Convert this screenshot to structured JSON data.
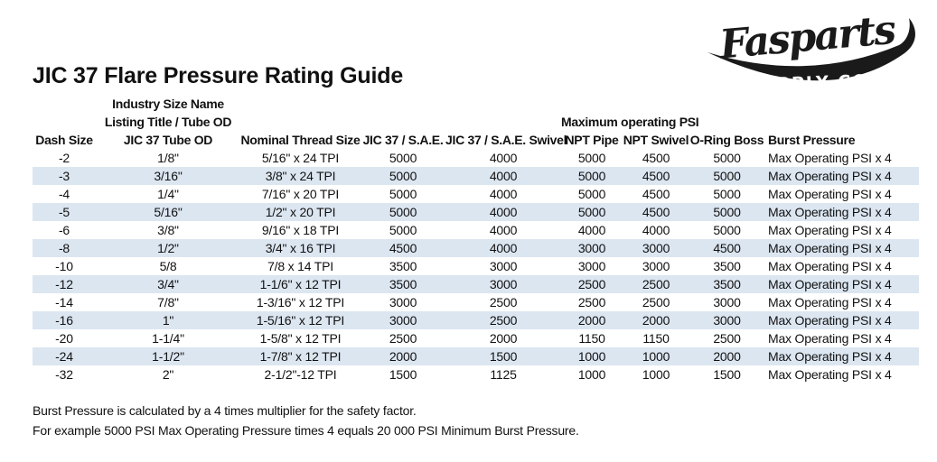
{
  "page": {
    "title": "JIC 37 Flare Pressure Rating Guide"
  },
  "logo": {
    "brand_name": "Fasparts",
    "brand_subtext": "SUPPLY CO.",
    "color": "#1a1a1a"
  },
  "table": {
    "group_header_line1": "Industry Size Name",
    "group_header_line2": "Listing Title / Tube OD",
    "psi_group_header": "Maximum operating PSI",
    "columns": [
      "Dash Size",
      "JIC 37 Tube OD",
      "Nominal Thread Size",
      "JIC 37 / S.A.E.",
      "JIC 37 / S.A.E. Swivel",
      "NPT Pipe",
      "NPT Swivel",
      "O-Ring Boss",
      "Burst Pressure"
    ],
    "column_keys": [
      "dash-size",
      "tube-od",
      "thread-size",
      "jic-sae",
      "jic-sae-swivel",
      "npt-pipe",
      "npt-swivel",
      "o-ring-boss",
      "burst-pressure"
    ],
    "shaded_row_color": "#dce6f1",
    "rows": [
      [
        "-2",
        "1/8\"",
        "5/16\" x 24 TPI",
        "5000",
        "4000",
        "5000",
        "4500",
        "5000",
        "Max Operating PSI x 4"
      ],
      [
        "-3",
        "3/16\"",
        "3/8\" x 24 TPI",
        "5000",
        "4000",
        "5000",
        "4500",
        "5000",
        "Max Operating PSI x 4"
      ],
      [
        "-4",
        "1/4\"",
        "7/16\" x 20 TPI",
        "5000",
        "4000",
        "5000",
        "4500",
        "5000",
        "Max Operating PSI x 4"
      ],
      [
        "-5",
        "5/16\"",
        "1/2\" x 20 TPI",
        "5000",
        "4000",
        "5000",
        "4500",
        "5000",
        "Max Operating PSI x 4"
      ],
      [
        "-6",
        "3/8\"",
        "9/16\" x 18 TPI",
        "5000",
        "4000",
        "4000",
        "4000",
        "5000",
        "Max Operating PSI x 4"
      ],
      [
        "-8",
        "1/2\"",
        "3/4\" x 16 TPI",
        "4500",
        "4000",
        "3000",
        "3000",
        "4500",
        "Max Operating PSI x 4"
      ],
      [
        "-10",
        "5/8",
        "7/8 x 14 TPI",
        "3500",
        "3000",
        "3000",
        "3000",
        "3500",
        "Max Operating PSI x 4"
      ],
      [
        "-12",
        "3/4\"",
        "1-1/6\" x 12 TPI",
        "3500",
        "3000",
        "2500",
        "2500",
        "3500",
        "Max Operating PSI x 4"
      ],
      [
        "-14",
        "7/8\"",
        "1-3/16\" x 12 TPI",
        "3000",
        "2500",
        "2500",
        "2500",
        "3000",
        "Max Operating PSI x 4"
      ],
      [
        "-16",
        "1\"",
        "1-5/16\" x 12 TPI",
        "3000",
        "2500",
        "2000",
        "2000",
        "3000",
        "Max Operating PSI x 4"
      ],
      [
        "-20",
        "1-1/4\"",
        "1-5/8\" x 12 TPI",
        "2500",
        "2000",
        "1150",
        "1150",
        "2500",
        "Max Operating PSI x 4"
      ],
      [
        "-24",
        "1-1/2\"",
        "1-7/8\" x 12 TPI",
        "2000",
        "1500",
        "1000",
        "1000",
        "2000",
        "Max Operating PSI x 4"
      ],
      [
        "-32",
        "2\"",
        "2-1/2\"-12 TPI",
        "1500",
        "1125",
        "1000",
        "1000",
        "1500",
        "Max Operating PSI x 4"
      ]
    ]
  },
  "footer": {
    "line1": "Burst Pressure is calculated by a 4 times multiplier for the safety factor.",
    "line2": "For example 5000 PSI Max Operating Pressure times 4 equals 20 000 PSI Minimum Burst Pressure."
  }
}
